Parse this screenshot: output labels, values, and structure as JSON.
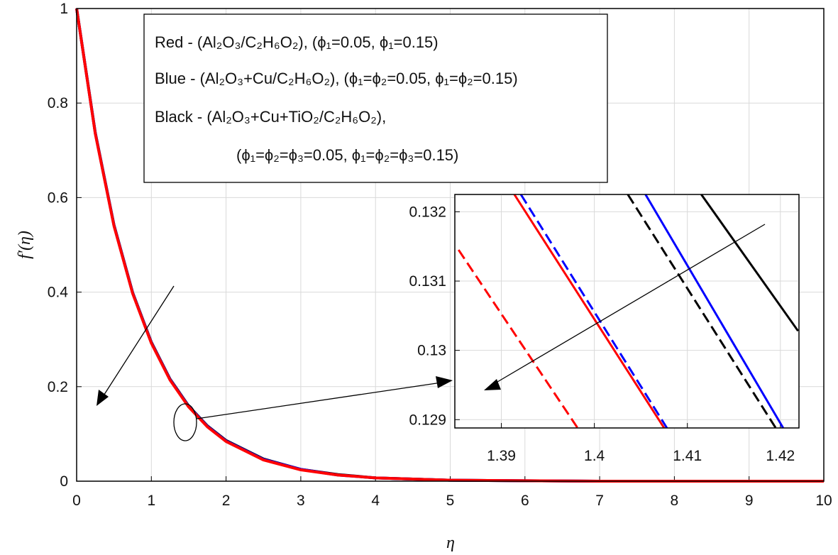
{
  "chart_data": [
    {
      "type": "line",
      "xlabel": "η",
      "ylabel": "f′(η)",
      "xlim": [
        0,
        10
      ],
      "ylim": [
        0,
        1
      ],
      "xticks": [
        "0",
        "1",
        "2",
        "3",
        "4",
        "5",
        "6",
        "7",
        "8",
        "9",
        "10"
      ],
      "yticks": [
        "0",
        "0.2",
        "0.4",
        "0.6",
        "0.8",
        "1"
      ],
      "grid": true,
      "legend_position": "top",
      "legend": [
        "Red - (Al₂O₃/C₂H₆O₂), (ϕ₁=0.05,  ϕ₁=0.15)",
        "Blue - (Al₂O₃+Cu/C₂H₆O₂), (ϕ₁=ϕ₂=0.05,  ϕ₁=ϕ₂=0.15)",
        "Black - (Al₂O₃+Cu+TiO₂/C₂H₆O₂),",
        "(ϕ₁=ϕ₂=ϕ₃=0.05,   ϕ₁=ϕ₂=ϕ₃=0.15)"
      ],
      "series": [
        {
          "color": "#000000",
          "x": [
            0,
            0.25,
            0.5,
            0.75,
            1,
            1.25,
            1.5,
            1.75,
            2,
            2.5,
            3,
            3.5,
            4,
            5,
            6,
            7,
            8,
            9,
            10
          ],
          "y": [
            1,
            0.737,
            0.542,
            0.399,
            0.294,
            0.216,
            0.159,
            0.117,
            0.086,
            0.047,
            0.025,
            0.014,
            0.007,
            0.002,
            0.001,
            0,
            0,
            0,
            0
          ]
        },
        {
          "color": "#0000ff",
          "x": [
            0,
            0.25,
            0.5,
            0.75,
            1,
            1.25,
            1.5,
            1.75,
            2,
            2.5,
            3,
            3.5,
            4,
            5,
            6,
            7,
            8,
            9,
            10
          ],
          "y": [
            1,
            0.736,
            0.541,
            0.398,
            0.293,
            0.215,
            0.158,
            0.116,
            0.085,
            0.046,
            0.025,
            0.013,
            0.007,
            0.002,
            0.001,
            0,
            0,
            0,
            0
          ]
        },
        {
          "color": "#ff0000",
          "x": [
            0,
            0.25,
            0.5,
            0.75,
            1,
            1.25,
            1.5,
            1.75,
            2,
            2.5,
            3,
            3.5,
            4,
            5,
            6,
            7,
            8,
            9,
            10
          ],
          "y": [
            1,
            0.735,
            0.54,
            0.397,
            0.292,
            0.214,
            0.157,
            0.115,
            0.084,
            0.045,
            0.024,
            0.013,
            0.007,
            0.002,
            0.001,
            0,
            0,
            0,
            0
          ]
        }
      ]
    },
    {
      "type": "line",
      "inset": true,
      "xlim": [
        1.385,
        1.422
      ],
      "ylim": [
        0.12888,
        0.13225
      ],
      "xticks": [
        "1.39",
        "1.4",
        "1.41",
        "1.42"
      ],
      "yticks": [
        "0.129",
        "0.13",
        "0.131",
        "0.132"
      ],
      "grid": true,
      "series": [
        {
          "color": "#ff0000",
          "dash": "solid",
          "x": [
            1.3914,
            1.4075
          ],
          "y": [
            0.13225,
            0.12888
          ]
        },
        {
          "color": "#ff0000",
          "dash": "dashed",
          "x": [
            1.3854,
            1.3982
          ],
          "y": [
            0.13145,
            0.12888
          ]
        },
        {
          "color": "#0000ff",
          "dash": "solid",
          "x": [
            1.4055,
            1.4203
          ],
          "y": [
            0.13225,
            0.12888
          ]
        },
        {
          "color": "#0000ff",
          "dash": "dashed",
          "x": [
            1.3921,
            1.4078
          ],
          "y": [
            0.13225,
            0.12888
          ]
        },
        {
          "color": "#000000",
          "dash": "solid",
          "x": [
            1.4115,
            1.4219
          ],
          "y": [
            0.13225,
            0.13028
          ]
        },
        {
          "color": "#000000",
          "dash": "dashed",
          "x": [
            1.4036,
            1.4195
          ],
          "y": [
            0.13225,
            0.12888
          ]
        }
      ]
    }
  ]
}
